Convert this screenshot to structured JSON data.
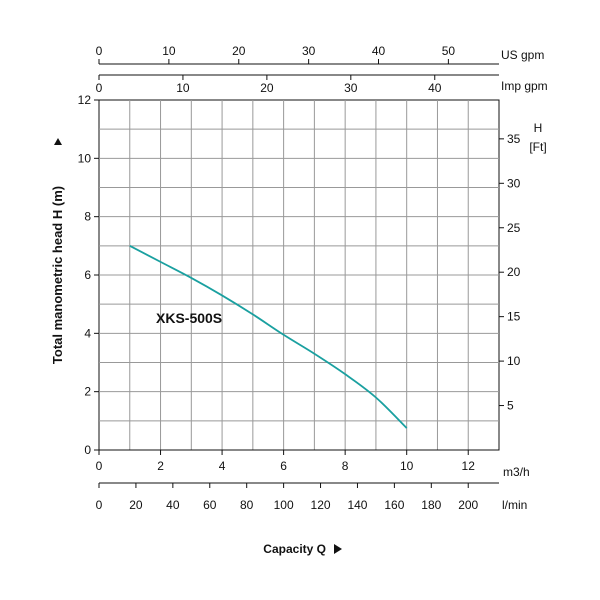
{
  "chart_data": {
    "type": "line",
    "ylabel": "Total manometric head H (m)",
    "xlabel": "Capacity Q",
    "series": [
      {
        "name": "XKS-500S",
        "color": "#1aa0a0",
        "x": [
          1,
          2,
          3,
          4,
          5,
          6,
          7,
          8,
          9,
          10
        ],
        "y": [
          7.0,
          6.45,
          5.9,
          5.3,
          4.65,
          3.95,
          3.3,
          2.6,
          1.8,
          0.75
        ]
      }
    ],
    "xlim": [
      0,
      13
    ],
    "ylim": [
      0,
      12
    ],
    "grid": true,
    "axes": {
      "q_m3h": {
        "unit": "m3/h",
        "ticks": [
          "0",
          "2",
          "4",
          "6",
          "8",
          "10",
          "12"
        ],
        "values": [
          0,
          2,
          4,
          6,
          8,
          10,
          12
        ]
      },
      "q_lmin": {
        "unit": "l/min",
        "ticks": [
          "0",
          "20",
          "40",
          "60",
          "80",
          "100",
          "120",
          "140",
          "160",
          "180",
          "200"
        ],
        "values": [
          0,
          20,
          40,
          60,
          80,
          100,
          120,
          140,
          160,
          180,
          200
        ]
      },
      "q_usgpm": {
        "unit": "US gpm",
        "ticks": [
          "0",
          "10",
          "20",
          "30",
          "40",
          "50"
        ],
        "values": [
          0,
          10,
          20,
          30,
          40,
          50
        ]
      },
      "q_impgpm": {
        "unit": "Imp gpm",
        "ticks": [
          "0",
          "10",
          "20",
          "30",
          "40"
        ],
        "values": [
          0,
          10,
          20,
          30,
          40
        ]
      },
      "h_m": {
        "unit": "m",
        "ticks": [
          "0",
          "2",
          "4",
          "6",
          "8",
          "10",
          "12"
        ],
        "values": [
          0,
          2,
          4,
          6,
          8,
          10,
          12
        ]
      },
      "h_ft": {
        "unit_line1": "H",
        "unit_line2": "[Ft]",
        "ticks": [
          "5",
          "10",
          "15",
          "20",
          "25",
          "30",
          "35"
        ],
        "values": [
          5,
          10,
          15,
          20,
          25,
          30,
          35
        ]
      }
    }
  }
}
